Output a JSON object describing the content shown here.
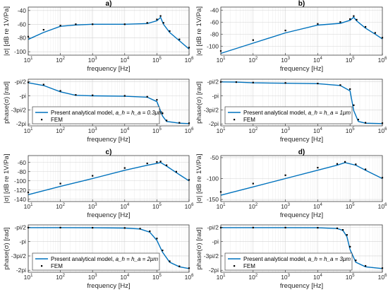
{
  "figure": {
    "xlabel": "frequency [Hz]",
    "mag_ylabel": "|σ| [dB re 1V/Pa]",
    "phase_ylabel": "phase(σ) [rad]",
    "x_ticks": [
      "10",
      "10",
      "10",
      "10",
      "10",
      "10"
    ],
    "x_tick_exponents": [
      "1",
      "2",
      "3",
      "4",
      "5",
      "6"
    ],
    "phase_tick_labels": [
      "-pi/2",
      "-pi",
      "-3pi/2",
      "-2pi"
    ],
    "legend_fem": "FEM",
    "legend_model_prefix": "Present analytical model, ",
    "line_color": "#0072BD",
    "marker_color": "#000000",
    "grid": true
  },
  "chart_data": [
    {
      "title": "a)",
      "type": "line",
      "xscale": "log",
      "xlim": [
        10,
        1000000
      ],
      "ylim": [
        -105,
        -35
      ],
      "yticks": [
        -100,
        -80,
        -60,
        -40
      ],
      "series": [
        {
          "name": "Present analytical model",
          "x": [
            10,
            30,
            100,
            300,
            1000,
            10000,
            50000,
            100000,
            130000,
            160000,
            250000,
            500000,
            1000000
          ],
          "y": [
            -82,
            -72,
            -63,
            -61,
            -60,
            -60,
            -59,
            -55,
            -50,
            -60,
            -72,
            -84,
            -96
          ]
        },
        {
          "name": "FEM",
          "x": [
            10,
            30,
            100,
            300,
            1000,
            10000,
            50000,
            100000,
            130000,
            160000,
            250000,
            500000,
            1000000
          ],
          "y": [
            -78,
            -68,
            -62,
            -60,
            -60,
            -60,
            -58,
            -53,
            -48,
            -58,
            -70,
            -82,
            -94
          ]
        }
      ]
    },
    {
      "title": "",
      "type": "line",
      "xscale": "log",
      "xlim": [
        10,
        1000000
      ],
      "ylim": [
        -6.5,
        -1.3
      ],
      "legend_label": "a_h = h_a = 0.3μm",
      "series": [
        {
          "name": "Present analytical model",
          "x": [
            10,
            30,
            100,
            300,
            1000,
            10000,
            50000,
            100000,
            150000,
            200000,
            500000,
            1000000
          ],
          "y": [
            -1.7,
            -2.0,
            -2.7,
            -3.1,
            -3.15,
            -3.2,
            -3.3,
            -3.8,
            -5.4,
            -6.0,
            -6.2,
            -6.25
          ]
        },
        {
          "name": "FEM",
          "x": [
            10,
            30,
            100,
            300,
            1000,
            10000,
            50000,
            100000,
            150000,
            200000,
            500000,
            1000000
          ],
          "y": [
            -1.65,
            -1.9,
            -2.6,
            -3.05,
            -3.1,
            -3.15,
            -3.25,
            -3.6,
            -5.1,
            -5.9,
            -6.15,
            -6.2
          ]
        }
      ]
    },
    {
      "title": "b)",
      "type": "line",
      "xscale": "log",
      "xlim": [
        10,
        1000000
      ],
      "ylim": [
        -115,
        -35
      ],
      "yticks": [
        -100,
        -80,
        -60,
        -40
      ],
      "series": [
        {
          "name": "Present analytical model",
          "x": [
            10,
            100,
            1000,
            10000,
            50000,
            100000,
            130000,
            160000,
            300000,
            600000,
            1000000
          ],
          "y": [
            -112,
            -95,
            -78,
            -65,
            -62,
            -57,
            -52,
            -58,
            -70,
            -80,
            -88
          ]
        },
        {
          "name": "FEM",
          "x": [
            10,
            100,
            1000,
            10000,
            50000,
            100000,
            130000,
            160000,
            300000,
            600000,
            1000000
          ],
          "y": [
            -108,
            -90,
            -74,
            -63,
            -60,
            -55,
            -50,
            -56,
            -68,
            -78,
            -86
          ]
        }
      ]
    },
    {
      "title": "",
      "type": "line",
      "xscale": "log",
      "xlim": [
        10,
        1000000
      ],
      "ylim": [
        -6.5,
        -1.3
      ],
      "legend_label": "a_h = h_a = 1μm",
      "series": [
        {
          "name": "Present analytical model",
          "x": [
            10,
            30,
            100,
            1000,
            10000,
            50000,
            100000,
            130000,
            180000,
            300000,
            1000000
          ],
          "y": [
            -1.6,
            -1.62,
            -1.7,
            -1.75,
            -1.8,
            -2.0,
            -2.6,
            -4.8,
            -6.0,
            -6.2,
            -6.25
          ]
        },
        {
          "name": "FEM",
          "x": [
            10,
            30,
            100,
            1000,
            10000,
            50000,
            100000,
            130000,
            180000,
            300000,
            1000000
          ],
          "y": [
            -1.6,
            -1.62,
            -1.68,
            -1.72,
            -1.78,
            -1.95,
            -2.4,
            -4.2,
            -5.8,
            -6.15,
            -6.2
          ]
        }
      ]
    },
    {
      "title": "c)",
      "type": "line",
      "xscale": "log",
      "xlim": [
        10,
        1000000
      ],
      "ylim": [
        -145,
        -45
      ],
      "yticks": [
        -140,
        -120,
        -100,
        -80,
        -60
      ],
      "series": [
        {
          "name": "Present analytical model",
          "x": [
            10,
            100,
            1000,
            10000,
            50000,
            100000,
            130000,
            200000,
            400000,
            1000000
          ],
          "y": [
            -130,
            -112,
            -95,
            -77,
            -66,
            -62,
            -60,
            -68,
            -82,
            -100
          ]
        },
        {
          "name": "FEM",
          "x": [
            10,
            100,
            1000,
            10000,
            50000,
            100000,
            130000,
            200000,
            400000,
            1000000
          ],
          "y": [
            -125,
            -106,
            -89,
            -72,
            -62,
            -59,
            -58,
            -66,
            -80,
            -98
          ]
        }
      ]
    },
    {
      "title": "",
      "type": "line",
      "xscale": "log",
      "xlim": [
        10,
        1000000
      ],
      "ylim": [
        -6.5,
        -1.3
      ],
      "legend_label": "a_h = h_a = 2μm",
      "series": [
        {
          "name": "Present analytical model",
          "x": [
            10,
            100,
            1000,
            10000,
            30000,
            60000,
            100000,
            150000,
            250000,
            500000,
            1000000
          ],
          "y": [
            -1.6,
            -1.6,
            -1.62,
            -1.65,
            -1.75,
            -2.1,
            -3.0,
            -4.3,
            -5.4,
            -5.9,
            -6.1
          ]
        },
        {
          "name": "FEM",
          "x": [
            10,
            100,
            1000,
            10000,
            30000,
            60000,
            100000,
            150000,
            250000,
            500000,
            1000000
          ],
          "y": [
            -1.6,
            -1.6,
            -1.62,
            -1.64,
            -1.72,
            -2.0,
            -2.8,
            -4.1,
            -5.3,
            -5.85,
            -6.05
          ]
        }
      ]
    },
    {
      "title": "d)",
      "type": "line",
      "xscale": "log",
      "xlim": [
        10,
        1000000
      ],
      "ylim": [
        -155,
        -45
      ],
      "yticks": [
        -150,
        -100,
        -50
      ],
      "series": [
        {
          "name": "Present analytical model",
          "x": [
            10,
            100,
            1000,
            10000,
            40000,
            70000,
            150000,
            300000,
            1000000
          ],
          "y": [
            -140,
            -120,
            -100,
            -80,
            -68,
            -62,
            -68,
            -80,
            -100
          ]
        },
        {
          "name": "FEM",
          "x": [
            10,
            100,
            1000,
            10000,
            40000,
            70000,
            150000,
            300000,
            1000000
          ],
          "y": [
            -132,
            -112,
            -92,
            -74,
            -65,
            -60,
            -66,
            -78,
            -98
          ]
        }
      ]
    },
    {
      "title": "",
      "type": "line",
      "xscale": "log",
      "xlim": [
        10,
        1000000
      ],
      "ylim": [
        -6.5,
        -1.3
      ],
      "legend_label": "a_h = h_a = 3μm",
      "series": [
        {
          "name": "Present analytical model",
          "x": [
            10,
            100,
            1000,
            10000,
            40000,
            60000,
            80000,
            100000,
            150000,
            300000,
            1000000
          ],
          "y": [
            -1.6,
            -1.6,
            -1.6,
            -1.62,
            -1.7,
            -1.9,
            -2.6,
            -4.0,
            -5.4,
            -5.9,
            -6.1
          ]
        },
        {
          "name": "FEM",
          "x": [
            10,
            100,
            1000,
            10000,
            40000,
            60000,
            80000,
            100000,
            150000,
            300000,
            1000000
          ],
          "y": [
            -1.6,
            -1.6,
            -1.6,
            -1.62,
            -1.68,
            -1.85,
            -2.4,
            -3.7,
            -5.2,
            -5.8,
            -6.05
          ]
        }
      ]
    }
  ]
}
